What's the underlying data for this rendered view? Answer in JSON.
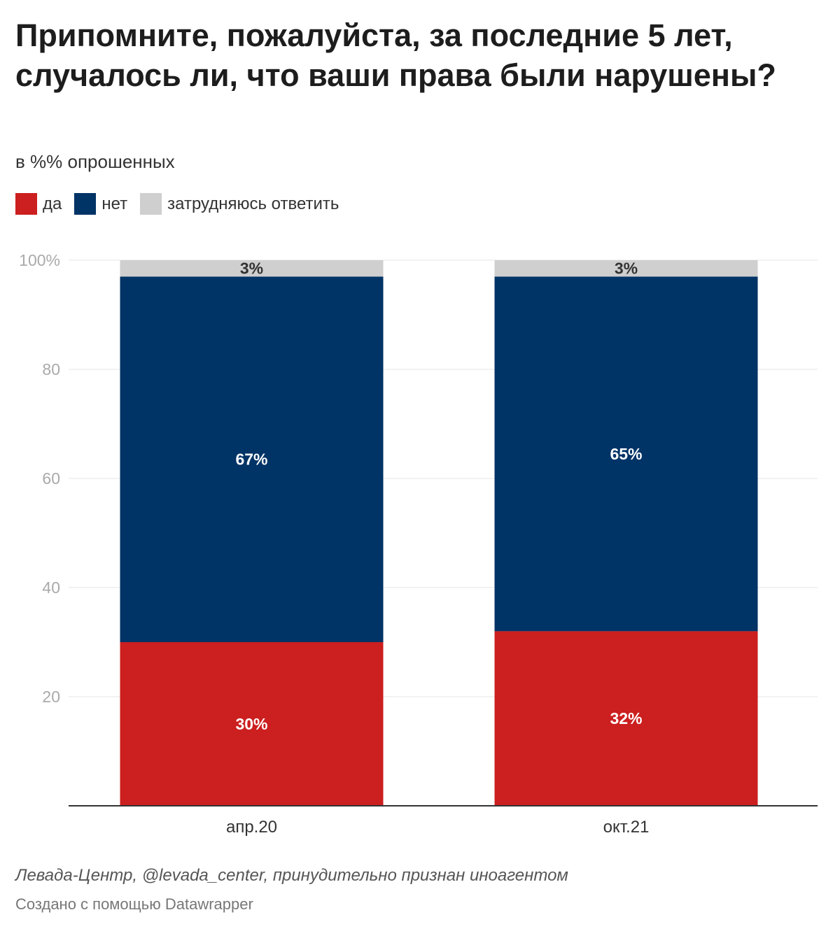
{
  "title": "Припомните, пожалуйста, за последние 5 лет, случалось ли, что ваши права были нарушены?",
  "subtitle": "в %% опрошенных",
  "source": "Левада-Центр, @levada_center, принудительно признан иноагентом",
  "credit": "Создано с помощью Datawrapper",
  "chart_data": {
    "type": "bar",
    "stacked": true,
    "categories": [
      "апр.20",
      "окт.21"
    ],
    "series": [
      {
        "name": "да",
        "values": [
          30,
          32
        ],
        "labels": [
          "30%",
          "32%"
        ],
        "color": "#cc1f1f"
      },
      {
        "name": "нет",
        "values": [
          67,
          65
        ],
        "labels": [
          "67%",
          "65%"
        ],
        "color": "#003366"
      },
      {
        "name": "затрудняюсь ответить",
        "values": [
          3,
          3
        ],
        "labels": [
          "3%",
          "3%"
        ],
        "color": "#cfcfcf"
      }
    ],
    "ylim": [
      0,
      100
    ],
    "yticks": [
      20,
      40,
      60,
      80,
      100
    ],
    "ytick_labels": [
      "20",
      "40",
      "60",
      "80",
      "100%"
    ],
    "grid": true,
    "legend": "top-left"
  }
}
